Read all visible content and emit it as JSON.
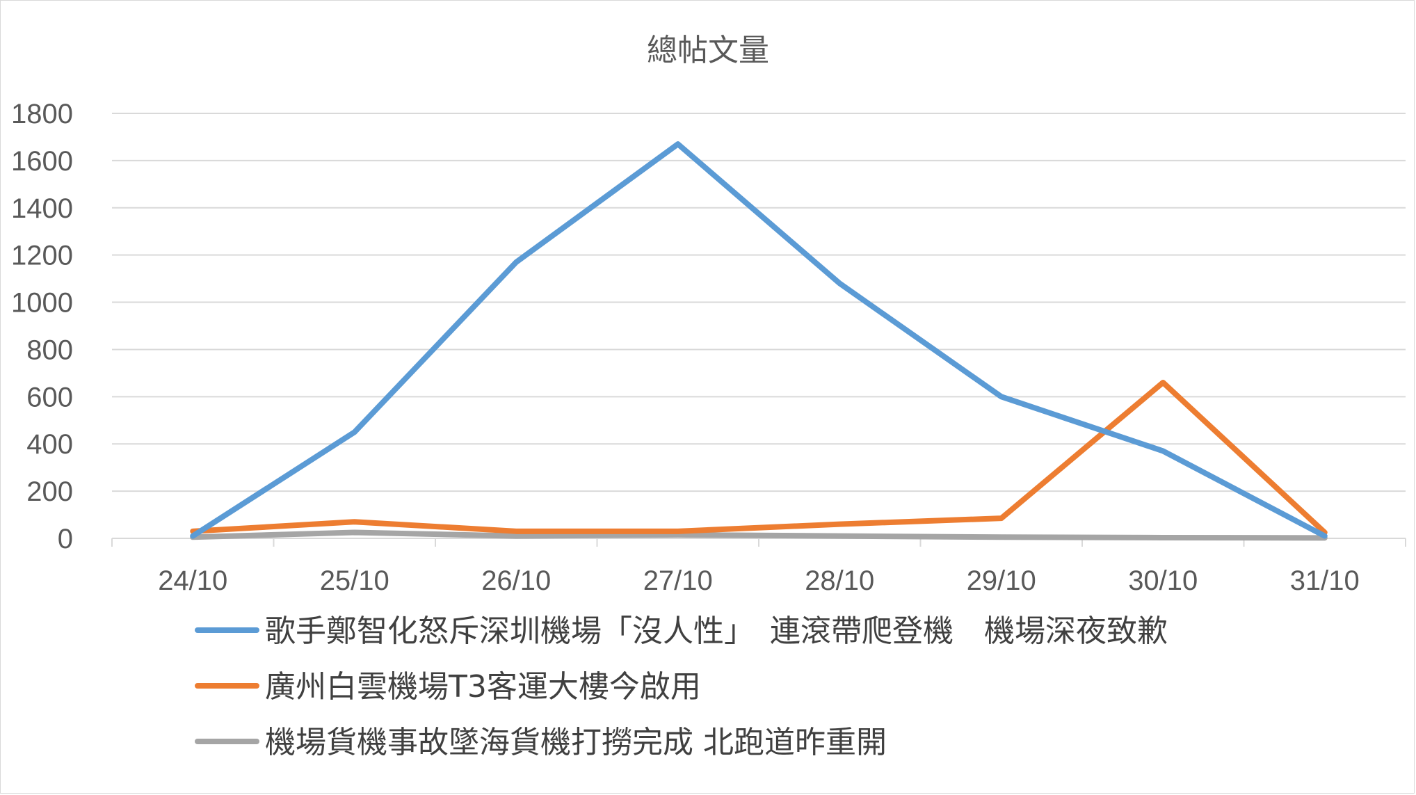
{
  "chart_data": {
    "type": "line",
    "title": "總帖文量",
    "xlabel": "",
    "ylabel": "",
    "categories": [
      "24/10",
      "25/10",
      "26/10",
      "27/10",
      "28/10",
      "29/10",
      "30/10",
      "31/10"
    ],
    "ylim": [
      0,
      1800
    ],
    "yticks": [
      0,
      200,
      400,
      600,
      800,
      1000,
      1200,
      1400,
      1600,
      1800
    ],
    "grid": true,
    "legend": "bottom",
    "series": [
      {
        "name": "歌手鄭智化怒斥深圳機場「沒人性」　連滾帶爬登機　機場深夜致歉",
        "color": "#5b9bd5",
        "values": [
          10,
          450,
          1170,
          1670,
          1080,
          600,
          370,
          10
        ]
      },
      {
        "name": "廣州白雲機場T3客運大樓今啟用",
        "color": "#ed7d31",
        "values": [
          30,
          70,
          30,
          30,
          60,
          85,
          660,
          25
        ]
      },
      {
        "name": "機場貨機事故墜海貨機打撈完成 北跑道昨重開",
        "color": "#a5a5a5",
        "values": [
          5,
          25,
          10,
          15,
          10,
          5,
          3,
          2
        ]
      }
    ]
  }
}
